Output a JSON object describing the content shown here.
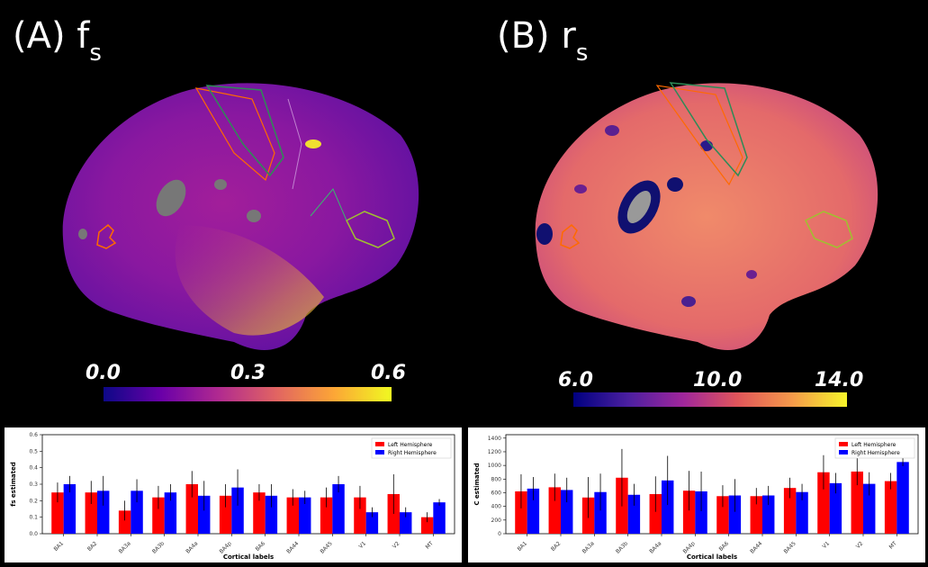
{
  "panels": [
    {
      "letter": "(A)",
      "symbol": "f",
      "sub": "s",
      "scale": [
        "0.0",
        "0.3",
        "0.6"
      ],
      "colors": {
        "cbar": [
          "#0d0887",
          "#6a00a8",
          "#b12a90",
          "#e16462",
          "#fca636",
          "#f0f921"
        ]
      }
    },
    {
      "letter": "(B)",
      "symbol": "r",
      "sub": "s",
      "scale": [
        "6.0",
        "10.0",
        "14.0"
      ],
      "colors": {
        "cbar": [
          "#000080",
          "#4b1fa0",
          "#a0269c",
          "#e1555a",
          "#f59a4a",
          "#f7f52a"
        ]
      }
    }
  ],
  "chart_data": [
    {
      "type": "bar",
      "categories": [
        "BA1",
        "BA2",
        "BA3a",
        "BA3b",
        "BA4a",
        "BA4p",
        "BA6",
        "BA44",
        "BA45",
        "V1",
        "V2",
        "MT"
      ],
      "series": [
        {
          "name": "Left Hemisphere",
          "color": "#ff0000",
          "values": [
            0.25,
            0.25,
            0.14,
            0.22,
            0.3,
            0.23,
            0.25,
            0.22,
            0.22,
            0.22,
            0.24,
            0.1
          ],
          "err": [
            0.06,
            0.07,
            0.06,
            0.07,
            0.08,
            0.07,
            0.05,
            0.05,
            0.06,
            0.07,
            0.12,
            0.03
          ]
        },
        {
          "name": "Right Hemisphere",
          "color": "#0000ff",
          "values": [
            0.3,
            0.26,
            0.26,
            0.25,
            0.23,
            0.28,
            0.23,
            0.22,
            0.3,
            0.13,
            0.13,
            0.19
          ],
          "err": [
            0.05,
            0.09,
            0.07,
            0.05,
            0.09,
            0.11,
            0.07,
            0.04,
            0.05,
            0.03,
            0.03,
            0.02
          ]
        }
      ],
      "ylabel": "fs estimated",
      "xlabel": "Cortical labels",
      "ylim": [
        0,
        0.6
      ],
      "yticks": [
        "0.0",
        "0.1",
        "0.2",
        "0.3",
        "0.4",
        "0.5",
        "0.6"
      ],
      "legend": "top-right",
      "grid": false
    },
    {
      "type": "bar",
      "categories": [
        "BA1",
        "BA2",
        "BA3a",
        "BA3b",
        "BA4a",
        "BA4p",
        "BA6",
        "BA44",
        "BA45",
        "V1",
        "V2",
        "MT"
      ],
      "series": [
        {
          "name": "Left Hemisphere",
          "color": "#ff0000",
          "values": [
            620,
            680,
            530,
            820,
            580,
            630,
            550,
            550,
            670,
            900,
            910,
            770
          ],
          "err": [
            250,
            200,
            300,
            420,
            260,
            290,
            160,
            120,
            150,
            250,
            200,
            120
          ]
        },
        {
          "name": "Right Hemisphere",
          "color": "#0000ff",
          "values": [
            660,
            640,
            610,
            570,
            780,
            620,
            560,
            560,
            610,
            740,
            730,
            1050
          ],
          "err": [
            170,
            180,
            270,
            160,
            360,
            290,
            240,
            140,
            120,
            150,
            170,
            60
          ]
        }
      ],
      "ylabel": "C estimated",
      "xlabel": "Cortical labels",
      "ylim": [
        0,
        1450
      ],
      "yticks": [
        "0",
        "200",
        "400",
        "600",
        "800",
        "1000",
        "1200",
        "1400"
      ],
      "legend": "top-right",
      "grid": false
    }
  ]
}
